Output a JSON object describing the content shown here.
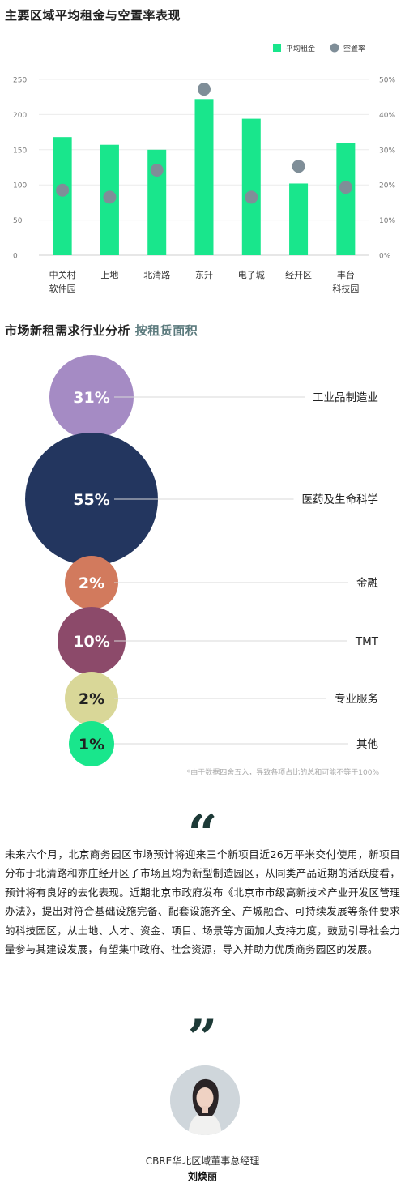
{
  "chart1": {
    "title": "主要区域平均租金与空置率表现",
    "chart_data": {
      "type": "bar",
      "categories": [
        [
          "中关村",
          "软件园"
        ],
        [
          "上地"
        ],
        [
          "北清路"
        ],
        [
          "东升"
        ],
        [
          "电子城"
        ],
        [
          "经开区"
        ],
        [
          "丰台",
          "科技园"
        ]
      ],
      "series": [
        {
          "name": "平均租金",
          "type": "bar",
          "color": "#19e68c",
          "values": [
            168,
            157,
            150,
            222,
            194,
            102,
            159
          ]
        },
        {
          "name": "空置率",
          "type": "scatter",
          "color": "#7f8e98",
          "values": [
            18.5,
            16.5,
            24.2,
            47.2,
            16.5,
            25.3,
            19.3
          ],
          "unit": "%"
        }
      ],
      "y_left": {
        "min": 0,
        "max": 250,
        "ticks": [
          0,
          50,
          100,
          150,
          200,
          250
        ]
      },
      "y_right": {
        "min": 0,
        "max": 50,
        "ticks": [
          "0%",
          "10%",
          "20%",
          "30%",
          "40%",
          "50%"
        ]
      },
      "legend_placement": "top-right",
      "grid": true
    }
  },
  "chart2": {
    "title_main": "市场新租需求行业分析",
    "title_sub": "按租赁面积",
    "chart_data": {
      "type": "bubble",
      "items": [
        {
          "label": "工业品制造业",
          "value_label": "31%",
          "value": 31,
          "color": "#a58bc4"
        },
        {
          "label": "医药及生命科学",
          "value_label": "55%",
          "value": 55,
          "color": "#23365f"
        },
        {
          "label": "金融",
          "value_label": "2%",
          "value": 2,
          "color": "#d27a5d"
        },
        {
          "label": "TMT",
          "value_label": "10%",
          "value": 10,
          "color": "#8c4a6a"
        },
        {
          "label": "专业服务",
          "value_label": "2%",
          "value": 2,
          "color": "#d9d798"
        },
        {
          "label": "其他",
          "value_label": "1%",
          "value": 1,
          "color": "#19e68c"
        }
      ]
    },
    "footnote": "*由于数据四舍五入，导致各项占比的总和可能不等于100%"
  },
  "quote": {
    "open_mark": "“",
    "text": "未来六个月，北京商务园区市场预计将迎来三个新项目近26万平米交付使用，新项目分布于北清路和亦庄经开区子市场且均为新型制造园区，从同类产品近期的活跃度看，预计将有良好的去化表现。近期北京市政府发布《北京市市级高新技术产业开发区管理办法》，提出对符合基础设施完备、配套设施齐全、产城融合、可持续发展等条件要求的科技园区，从土地、人才、资金、项目、场景等方面加大支持力度，鼓励引导社会力量参与其建设发展，有望集中政府、社会资源，导入并助力优质商务园区的发展。",
    "close_mark": "”",
    "author_title": "CBRE华北区域董事总经理",
    "author_name": "刘焕丽"
  }
}
